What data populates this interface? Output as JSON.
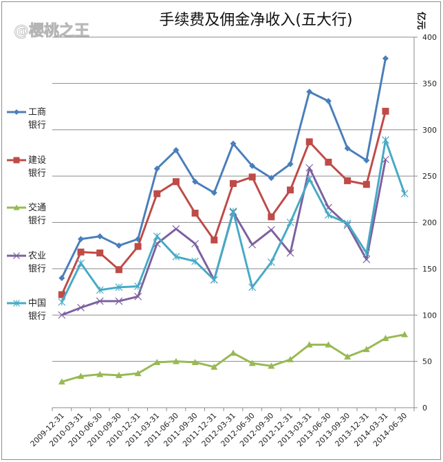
{
  "chart_data": {
    "type": "line",
    "title": "手续费及佣金净收入(五大行)",
    "xlabel": "",
    "ylabel": "亿元",
    "ylim": [
      0,
      400
    ],
    "yticks": [
      0,
      50,
      100,
      150,
      200,
      250,
      300,
      350,
      400
    ],
    "grid": true,
    "legend_position": "left",
    "categories": [
      "2009-12-31",
      "2010-03-31",
      "2010-06-30",
      "2010-09-30",
      "2010-12-31",
      "2011-03-31",
      "2011-06-30",
      "2011-09-30",
      "2011-12-31",
      "2012-03-31",
      "2012-06-30",
      "2012-09-30",
      "2012-12-31",
      "2013-03-31",
      "2013-06-30",
      "2013-09-30",
      "2013-12-31",
      "2014-03-31",
      "2014-06-30"
    ],
    "series": [
      {
        "name": "工商银行",
        "label_lines": [
          "工商",
          "银行"
        ],
        "color": "#4a7ebb",
        "marker": "diamond",
        "values": [
          140,
          182,
          185,
          175,
          182,
          258,
          278,
          244,
          232,
          285,
          261,
          248,
          263,
          341,
          331,
          280,
          267,
          377,
          null
        ]
      },
      {
        "name": "建设银行",
        "label_lines": [
          "建设",
          "银行"
        ],
        "color": "#be4b48",
        "marker": "square",
        "values": [
          122,
          168,
          167,
          149,
          174,
          231,
          244,
          210,
          181,
          242,
          249,
          206,
          235,
          287,
          265,
          245,
          241,
          320,
          null
        ]
      },
      {
        "name": "交通银行",
        "label_lines": [
          "交通",
          "银行"
        ],
        "color": "#98b954",
        "marker": "triangle",
        "values": [
          28,
          34,
          36,
          35,
          37,
          49,
          50,
          49,
          44,
          59,
          48,
          45,
          52,
          68,
          68,
          55,
          63,
          75,
          79
        ]
      },
      {
        "name": "农业银行",
        "label_lines": [
          "农业",
          "银行"
        ],
        "color": "#7d60a0",
        "marker": "x",
        "values": [
          100,
          108,
          115,
          115,
          120,
          177,
          193,
          177,
          138,
          211,
          176,
          192,
          167,
          259,
          216,
          197,
          160,
          268,
          null
        ]
      },
      {
        "name": "中国银行",
        "label_lines": [
          "中国",
          "银行"
        ],
        "color": "#46aac5",
        "marker": "star",
        "values": [
          114,
          156,
          127,
          130,
          131,
          185,
          163,
          158,
          138,
          212,
          130,
          157,
          200,
          247,
          208,
          199,
          167,
          289,
          231
        ]
      }
    ]
  },
  "watermark": "@樱桃之王"
}
